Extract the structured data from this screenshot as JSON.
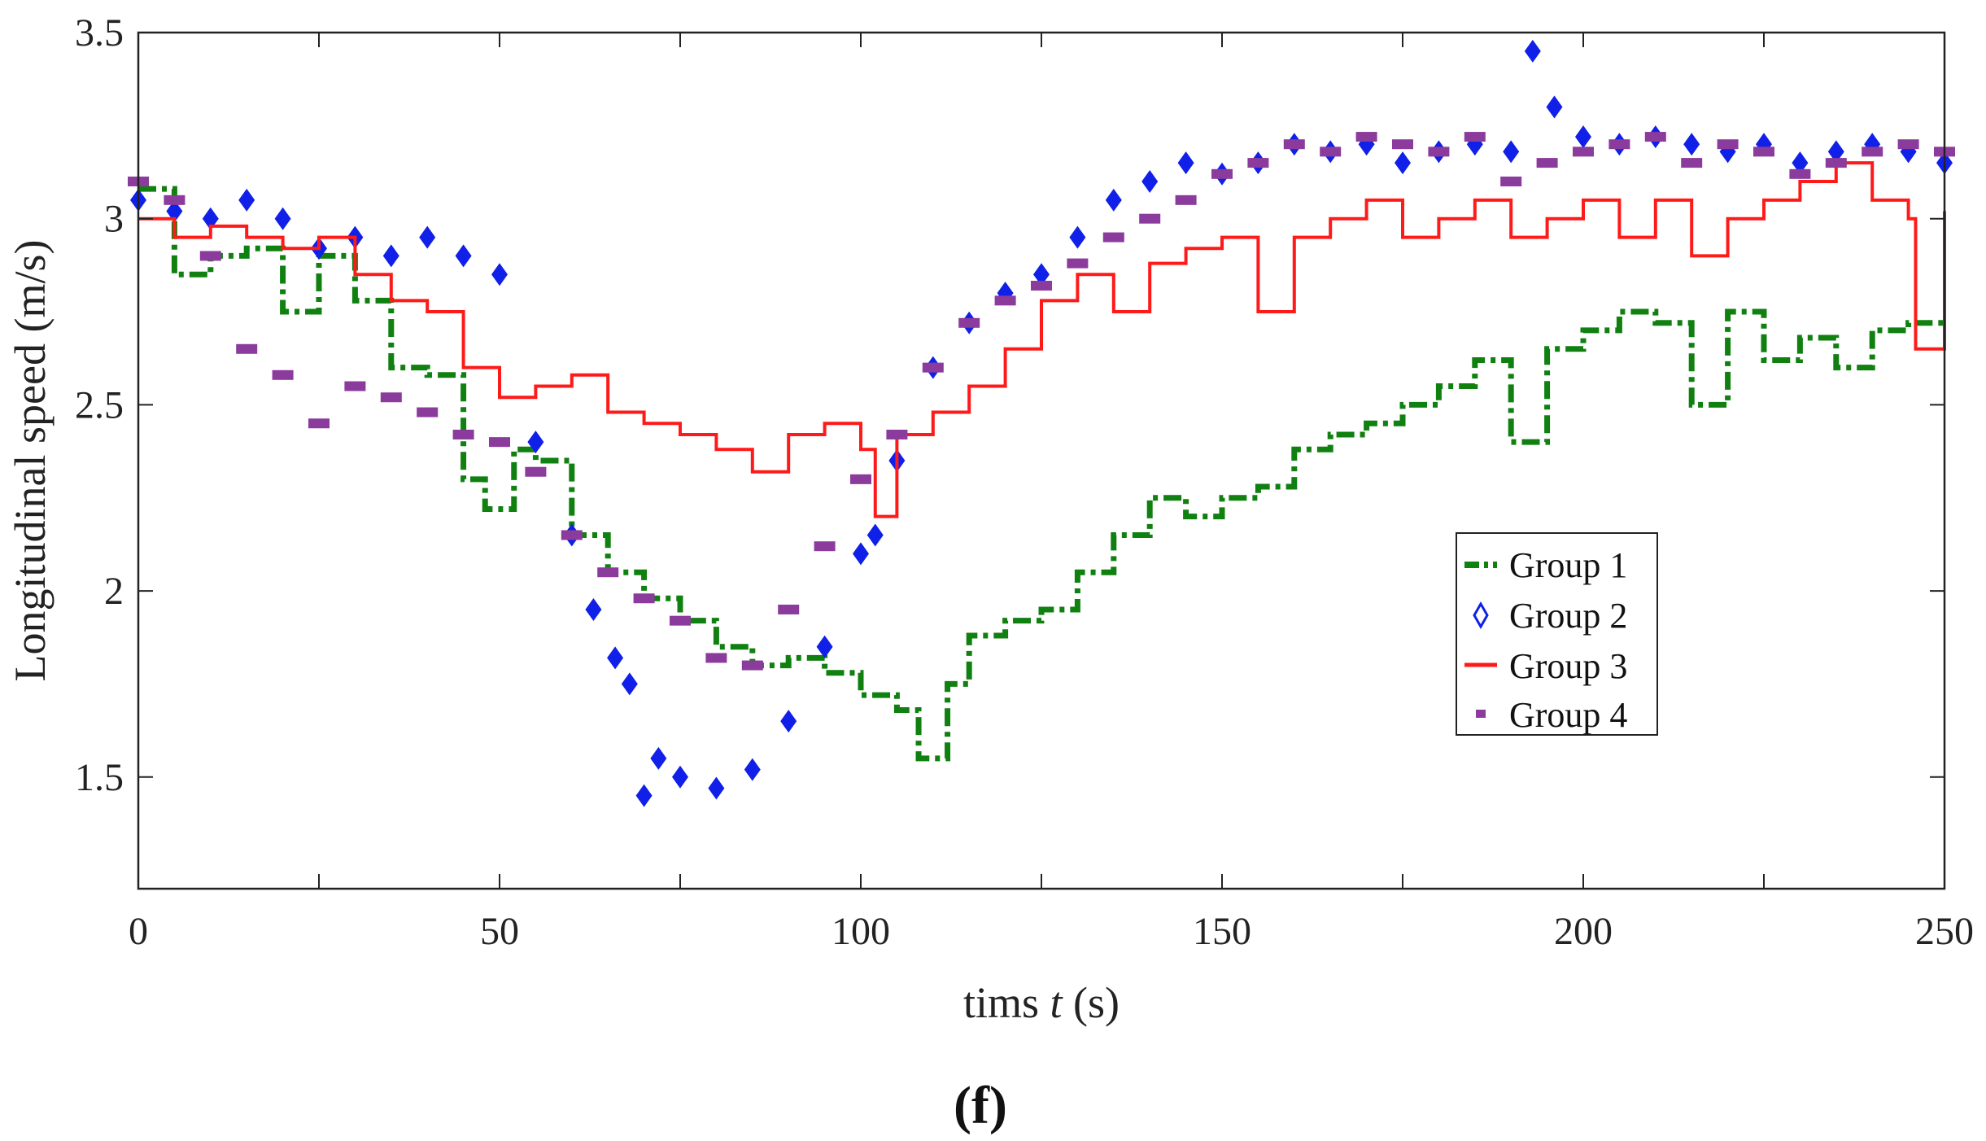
{
  "chart_data": {
    "type": "line",
    "title": "",
    "xlabel_prefix": "tims ",
    "xlabel_var": "t",
    "xlabel_suffix": " (s)",
    "ylabel": "Longitudinal speed (m/s)",
    "xlim": [
      0,
      250
    ],
    "ylim": [
      1.2,
      3.5
    ],
    "xticks": [
      0,
      50,
      100,
      150,
      200,
      250
    ],
    "xtick_labels": [
      "0",
      "50",
      "100",
      "150",
      "200",
      "250"
    ],
    "yticks": [
      1.5,
      2,
      2.5,
      3,
      3.5
    ],
    "ytick_labels": [
      "1.5",
      "2",
      "2.5",
      "3",
      "3.5"
    ],
    "grid": false,
    "legend_position": "center-right",
    "panel_label": "(f)",
    "series": [
      {
        "name": "Group 1",
        "color": "#108010",
        "style": "dash-dot",
        "x": [
          0,
          5,
          10,
          15,
          20,
          25,
          30,
          35,
          40,
          45,
          48,
          52,
          55,
          60,
          65,
          70,
          75,
          80,
          85,
          90,
          95,
          100,
          105,
          108,
          112,
          115,
          120,
          125,
          130,
          135,
          140,
          145,
          150,
          155,
          160,
          165,
          170,
          175,
          180,
          185,
          190,
          195,
          200,
          205,
          210,
          215,
          220,
          225,
          230,
          235,
          240,
          245,
          250
        ],
        "y": [
          3.08,
          2.85,
          2.9,
          2.92,
          2.75,
          2.9,
          2.78,
          2.6,
          2.58,
          2.3,
          2.22,
          2.38,
          2.35,
          2.15,
          2.05,
          1.98,
          1.92,
          1.85,
          1.8,
          1.82,
          1.78,
          1.72,
          1.68,
          1.55,
          1.75,
          1.88,
          1.92,
          1.95,
          2.05,
          2.15,
          2.25,
          2.2,
          2.25,
          2.28,
          2.38,
          2.42,
          2.45,
          2.5,
          2.55,
          2.62,
          2.4,
          2.65,
          2.7,
          2.75,
          2.72,
          2.5,
          2.75,
          2.62,
          2.68,
          2.6,
          2.7,
          2.72,
          2.72
        ]
      },
      {
        "name": "Group 2",
        "color": "#1020e8",
        "style": "diamond",
        "x": [
          0,
          5,
          10,
          15,
          20,
          25,
          30,
          35,
          40,
          45,
          50,
          55,
          60,
          63,
          66,
          68,
          70,
          72,
          75,
          80,
          85,
          90,
          95,
          100,
          102,
          105,
          110,
          115,
          120,
          125,
          130,
          135,
          140,
          145,
          150,
          155,
          160,
          165,
          170,
          175,
          180,
          185,
          190,
          193,
          196,
          200,
          205,
          210,
          215,
          220,
          225,
          230,
          235,
          240,
          245,
          250
        ],
        "y": [
          3.05,
          3.02,
          3.0,
          3.05,
          3.0,
          2.92,
          2.95,
          2.9,
          2.95,
          2.9,
          2.85,
          2.4,
          2.15,
          1.95,
          1.82,
          1.75,
          1.45,
          1.55,
          1.5,
          1.47,
          1.52,
          1.65,
          1.85,
          2.1,
          2.15,
          2.35,
          2.6,
          2.72,
          2.8,
          2.85,
          2.95,
          3.05,
          3.1,
          3.15,
          3.12,
          3.15,
          3.2,
          3.18,
          3.2,
          3.15,
          3.18,
          3.2,
          3.18,
          3.45,
          3.3,
          3.22,
          3.2,
          3.22,
          3.2,
          3.18,
          3.2,
          3.15,
          3.18,
          3.2,
          3.18,
          3.15
        ]
      },
      {
        "name": "Group 3",
        "color": "#ff1a1a",
        "style": "solid",
        "x": [
          0,
          5,
          10,
          15,
          20,
          25,
          30,
          35,
          40,
          45,
          50,
          55,
          60,
          65,
          70,
          75,
          80,
          85,
          90,
          95,
          100,
          102,
          105,
          110,
          115,
          120,
          125,
          130,
          135,
          140,
          145,
          150,
          155,
          160,
          165,
          170,
          175,
          180,
          185,
          190,
          195,
          200,
          205,
          210,
          215,
          220,
          225,
          230,
          235,
          240,
          245,
          246,
          250
        ],
        "y": [
          3.0,
          2.95,
          2.98,
          2.95,
          2.92,
          2.95,
          2.85,
          2.78,
          2.75,
          2.6,
          2.52,
          2.55,
          2.58,
          2.48,
          2.45,
          2.42,
          2.38,
          2.32,
          2.42,
          2.45,
          2.38,
          2.2,
          2.42,
          2.48,
          2.55,
          2.65,
          2.78,
          2.85,
          2.75,
          2.88,
          2.92,
          2.95,
          2.75,
          2.95,
          3.0,
          3.05,
          2.95,
          3.0,
          3.05,
          2.95,
          3.0,
          3.05,
          2.95,
          3.05,
          2.9,
          3.0,
          3.05,
          3.1,
          3.15,
          3.05,
          3.0,
          2.65,
          3.02
        ]
      },
      {
        "name": "Group 4",
        "color": "#8b3b9c",
        "style": "square",
        "x": [
          0,
          5,
          10,
          15,
          20,
          25,
          30,
          35,
          40,
          45,
          50,
          55,
          60,
          65,
          70,
          75,
          80,
          85,
          90,
          95,
          100,
          105,
          110,
          115,
          120,
          125,
          130,
          135,
          140,
          145,
          150,
          155,
          160,
          165,
          170,
          175,
          180,
          185,
          190,
          195,
          200,
          205,
          210,
          215,
          220,
          225,
          230,
          235,
          240,
          245,
          250
        ],
        "y": [
          3.1,
          3.05,
          2.9,
          2.65,
          2.58,
          2.45,
          2.55,
          2.52,
          2.48,
          2.42,
          2.4,
          2.32,
          2.15,
          2.05,
          1.98,
          1.92,
          1.82,
          1.8,
          1.95,
          2.12,
          2.3,
          2.42,
          2.6,
          2.72,
          2.78,
          2.82,
          2.88,
          2.95,
          3.0,
          3.05,
          3.12,
          3.15,
          3.2,
          3.18,
          3.22,
          3.2,
          3.18,
          3.22,
          3.1,
          3.15,
          3.18,
          3.2,
          3.22,
          3.15,
          3.2,
          3.18,
          3.12,
          3.15,
          3.18,
          3.2,
          3.18
        ]
      }
    ]
  }
}
